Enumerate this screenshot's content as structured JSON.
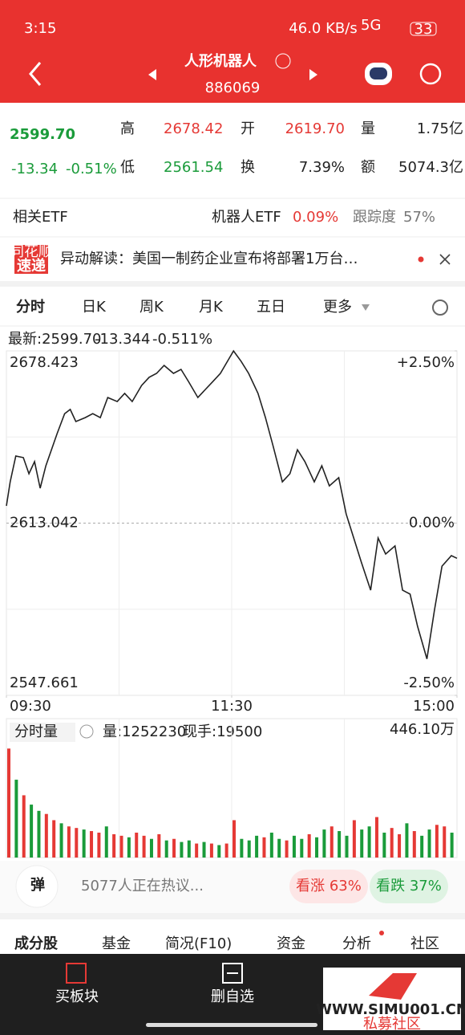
{
  "status_bar": {
    "time": "3:15",
    "speed": "46.0 KB/s",
    "network": "5G",
    "battery": "33"
  },
  "header": {
    "title": "人形机器人",
    "code": "886069"
  },
  "quote": {
    "price": "2599.70",
    "change": "-13.34",
    "change_pct": "-0.51%",
    "labels": [
      "高",
      "低",
      "开",
      "换",
      "量",
      "额"
    ],
    "high": "2678.42",
    "low": "2561.54",
    "open": "2619.70",
    "turnover": "7.39%",
    "volume": "1.75亿",
    "amount": "5074.3亿"
  },
  "etf": {
    "label": "相关ETF",
    "name": "机器人ETF",
    "change": "0.09%",
    "tracking_label": "跟踪度",
    "tracking": "57%"
  },
  "news": {
    "badge_top": "同花顺",
    "badge_bottom": "速递",
    "text": "异动解读：美国一制药企业宣布将部署1万台…"
  },
  "tabs": [
    "分时",
    "日K",
    "周K",
    "月K",
    "五日",
    "更多"
  ],
  "chart_data": [
    {
      "type": "line",
      "annotations": [
        "最新:2599.70",
        "-13.344",
        "-0.511%"
      ],
      "x": [
        0,
        2,
        5,
        9,
        12,
        15,
        18,
        21,
        24,
        27,
        31,
        34,
        37,
        42,
        46,
        50,
        54,
        59,
        63,
        67,
        72,
        76,
        80,
        84,
        89,
        93,
        97,
        102,
        106,
        110,
        114,
        119,
        121,
        125,
        129,
        134,
        138,
        142,
        147,
        151,
        155,
        159,
        164,
        168,
        172,
        177,
        181,
        185,
        189,
        194,
        198,
        202,
        207,
        211,
        215,
        219,
        224,
        228,
        232,
        237,
        240
      ],
      "series": [
        {
          "color": "#222222",
          "values": [
            2619.6,
            2628.7,
            2638.5,
            2637.9,
            2631.8,
            2636.4,
            2626.3,
            2634.8,
            2640.9,
            2647.0,
            2654.6,
            2656.2,
            2651.6,
            2653.1,
            2654.6,
            2653.1,
            2660.7,
            2659.2,
            2662.3,
            2659.2,
            2665.3,
            2668.4,
            2669.9,
            2672.9,
            2669.9,
            2671.4,
            2666.8,
            2660.7,
            2663.8,
            2666.8,
            2669.9,
            2676.0,
            2678.4,
            2674.5,
            2669.9,
            2662.3,
            2653.1,
            2642.5,
            2628.7,
            2631.8,
            2640.9,
            2636.4,
            2628.7,
            2634.8,
            2627.2,
            2630.3,
            2616.5,
            2607.4,
            2598.3,
            2587.6,
            2607.4,
            2601.3,
            2604.4,
            2587.6,
            2586.1,
            2573.9,
            2561.5,
            2580.0,
            2596.7,
            2600.7,
            2599.7
          ]
        }
      ],
      "xlim": [
        0,
        240
      ],
      "xticks": [
        {
          "value": 0,
          "label": "09:30"
        },
        {
          "value": 120,
          "label": "11:30"
        },
        {
          "value": 240,
          "label": "15:00"
        }
      ],
      "ylim": [
        2547.661,
        2678.423
      ],
      "yticks": [
        2678.423,
        2613.042,
        2547.661
      ],
      "y2lim": [
        -2.5,
        2.5
      ],
      "y2ticks": [
        {
          "value": 2.5,
          "label": "+2.50%"
        },
        {
          "value": 0,
          "label": "0.00%"
        },
        {
          "value": -2.5,
          "label": "-2.50%"
        }
      ],
      "grid": true
    },
    {
      "type": "bar",
      "title": "分时量",
      "annotations": [
        "量:1252230",
        "现手:19500"
      ],
      "x": [
        0,
        4,
        8,
        12,
        16,
        20,
        24,
        28,
        32,
        36,
        40,
        44,
        48,
        52,
        56,
        60,
        64,
        68,
        72,
        76,
        80,
        84,
        88,
        92,
        96,
        100,
        104,
        108,
        112,
        116,
        120,
        124,
        128,
        132,
        136,
        140,
        144,
        148,
        152,
        156,
        160,
        164,
        168,
        172,
        176,
        180,
        184,
        188,
        192,
        196,
        200,
        204,
        208,
        212,
        216,
        220,
        224,
        228,
        232,
        236
      ],
      "values": [
        350,
        250,
        200,
        170,
        150,
        140,
        120,
        110,
        100,
        95,
        90,
        85,
        80,
        100,
        75,
        70,
        65,
        80,
        70,
        60,
        75,
        55,
        60,
        50,
        55,
        45,
        50,
        45,
        40,
        45,
        120,
        60,
        55,
        70,
        65,
        80,
        60,
        55,
        70,
        60,
        75,
        65,
        90,
        100,
        85,
        70,
        120,
        90,
        100,
        130,
        80,
        95,
        75,
        110,
        85,
        70,
        90,
        105,
        100,
        80
      ],
      "colors": [
        "#e53935",
        "#1a9b3a",
        "#e53935",
        "#1a9b3a",
        "#1a9b3a",
        "#e53935",
        "#e53935",
        "#1a9b3a",
        "#e53935",
        "#e53935",
        "#1a9b3a",
        "#e53935",
        "#e53935",
        "#1a9b3a",
        "#e53935",
        "#e53935",
        "#1a9b3a",
        "#e53935",
        "#e53935",
        "#1a9b3a",
        "#e53935",
        "#1a9b3a",
        "#e53935",
        "#1a9b3a",
        "#1a9b3a",
        "#e53935",
        "#1a9b3a",
        "#e53935",
        "#1a9b3a",
        "#e53935",
        "#e53935",
        "#1a9b3a",
        "#1a9b3a",
        "#1a9b3a",
        "#e53935",
        "#1a9b3a",
        "#1a9b3a",
        "#e53935",
        "#1a9b3a",
        "#1a9b3a",
        "#e53935",
        "#1a9b3a",
        "#1a9b3a",
        "#e53935",
        "#1a9b3a",
        "#1a9b3a",
        "#e53935",
        "#1a9b3a",
        "#1a9b3a",
        "#e53935",
        "#1a9b3a",
        "#e53935",
        "#e53935",
        "#1a9b3a",
        "#e53935",
        "#1a9b3a",
        "#1a9b3a",
        "#e53935",
        "#e53935",
        "#1a9b3a"
      ],
      "ylim": [
        0,
        446.1
      ],
      "yticks": [
        {
          "value": 446.1,
          "label": "446.10万"
        }
      ]
    }
  ],
  "comment": {
    "button": "弹",
    "text": "5077人正在热议...",
    "bull": "看涨 63%",
    "bear": "看跌 37%"
  },
  "bottom_tabs": [
    "成分股",
    "基金",
    "简况(F10)",
    "资金",
    "分析",
    "社区"
  ],
  "nav": [
    "买板块",
    "删自选"
  ],
  "watermark": {
    "site": "WWW.SIMU001.CN",
    "name": "私募社区"
  }
}
